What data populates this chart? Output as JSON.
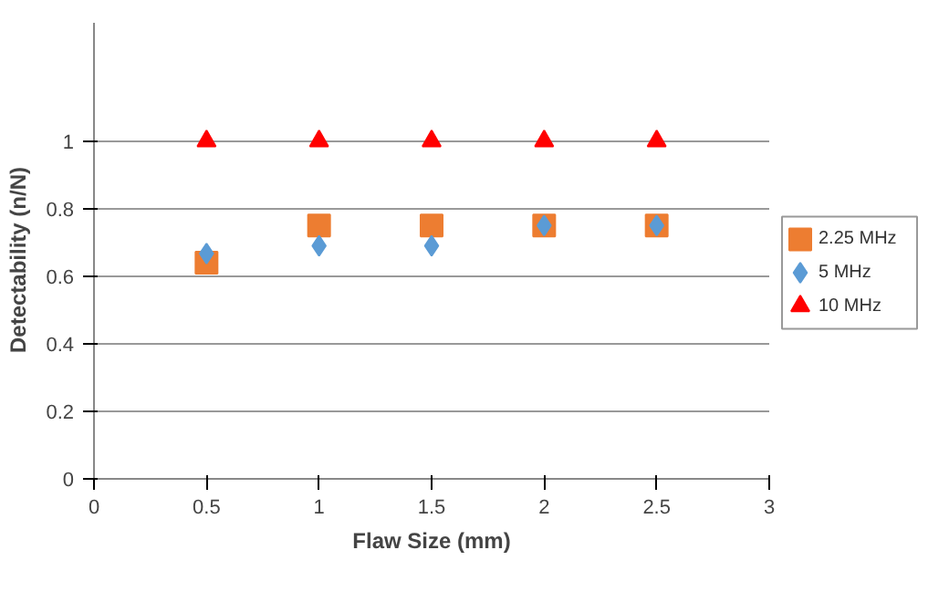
{
  "chart_data": {
    "type": "scatter",
    "xlabel": "Flaw Size (mm)",
    "ylabel": "Detectability    (n/N)",
    "x": [
      0.5,
      1,
      1.5,
      2,
      2.5
    ],
    "series": [
      {
        "name": "2.25 MHz",
        "color": "#ed7d31",
        "marker": "square",
        "values": [
          0.64,
          0.75,
          0.75,
          0.75,
          0.75
        ]
      },
      {
        "name": "5 MHz",
        "color": "#5b9bd5",
        "marker": "diamond",
        "values": [
          0.667,
          0.69,
          0.69,
          0.75,
          0.75
        ]
      },
      {
        "name": "10 MHz",
        "color": "#ff0000",
        "marker": "triangle",
        "values": [
          1,
          1,
          1,
          1,
          1
        ]
      }
    ],
    "xlim": [
      0,
      3
    ],
    "xticks": [
      0,
      0.5,
      1,
      1.5,
      2,
      2.5,
      3
    ],
    "ylim": [
      0,
      1.35
    ],
    "yticks": [
      0,
      0.2,
      0.4,
      0.6,
      0.8,
      1
    ],
    "grid": "y",
    "legend": "right"
  }
}
